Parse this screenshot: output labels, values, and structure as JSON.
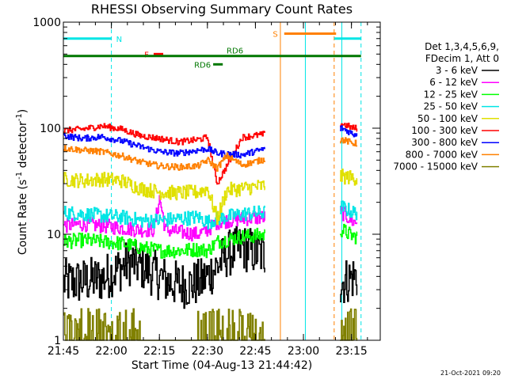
{
  "chart_data": {
    "type": "line",
    "title": "RHESSI Observing Summary Count Rates",
    "xlabel": "Start Time (04-Aug-13 21:44:42)",
    "ylabel": "Count Rate (s-1 detector-1)",
    "yscale": "log",
    "ylim": [
      1,
      1000
    ],
    "xlim_minutes": [
      21.75,
      23.4
    ],
    "x_ticks": [
      {
        "value": 21.75,
        "label": "21:45"
      },
      {
        "value": 22.0,
        "label": "22:00"
      },
      {
        "value": 22.25,
        "label": "22:15"
      },
      {
        "value": 22.5,
        "label": "22:30"
      },
      {
        "value": 22.75,
        "label": "22:45"
      },
      {
        "value": 23.0,
        "label": "23:00"
      },
      {
        "value": 23.25,
        "label": "23:15"
      }
    ],
    "y_ticks": [
      {
        "value": 1,
        "label": "1"
      },
      {
        "value": 10,
        "label": "10"
      },
      {
        "value": 100,
        "label": "100"
      },
      {
        "value": 1000,
        "label": "1000"
      }
    ],
    "legend_header": [
      "Det 1,3,4,5,6,9,",
      "FDecim 1, Att 0"
    ],
    "series": [
      {
        "name": "3 - 6 keV",
        "color": "#000000",
        "x": [
          21.75,
          21.85,
          21.95,
          22.02,
          22.1,
          22.2,
          22.3,
          22.4,
          22.47,
          22.55,
          22.6,
          22.68,
          23.2,
          23.26
        ],
        "values": [
          3.5,
          3.6,
          3.8,
          4.5,
          5.5,
          4.5,
          3.5,
          3.3,
          3.6,
          5.0,
          6.5,
          7.5,
          3.5,
          4.0
        ]
      },
      {
        "name": "6 - 12 keV",
        "color": "#ff00ff",
        "x": [
          21.75,
          21.85,
          21.95,
          22.05,
          22.15,
          22.22,
          22.25,
          22.28,
          22.35,
          22.45,
          22.5,
          22.55,
          22.68,
          23.2,
          23.26
        ],
        "values": [
          12.0,
          12.5,
          12.0,
          11.5,
          11.0,
          11.0,
          22.0,
          11.0,
          10.5,
          10.0,
          11.0,
          13.0,
          14.0,
          16.0,
          13.0
        ]
      },
      {
        "name": "12 - 25 keV",
        "color": "#00ff00",
        "x": [
          21.75,
          21.85,
          21.95,
          22.05,
          22.15,
          22.25,
          22.35,
          22.45,
          22.5,
          22.55,
          22.68,
          23.2,
          23.26
        ],
        "values": [
          8.5,
          8.8,
          8.5,
          8.2,
          7.5,
          7.0,
          7.0,
          7.2,
          7.0,
          8.5,
          9.5,
          11.0,
          9.5
        ]
      },
      {
        "name": "25 - 50 keV",
        "color": "#00e5e5",
        "x": [
          21.75,
          21.85,
          21.95,
          22.05,
          22.15,
          22.25,
          22.35,
          22.45,
          22.5,
          22.55,
          22.68,
          23.2,
          23.26
        ],
        "values": [
          16.0,
          15.5,
          15.0,
          14.5,
          13.5,
          13.5,
          14.0,
          14.5,
          13.0,
          14.0,
          15.5,
          18.0,
          16.0
        ]
      },
      {
        "name": "50 - 100 keV",
        "color": "#e0e000",
        "x": [
          21.75,
          21.85,
          21.95,
          22.05,
          22.15,
          22.25,
          22.35,
          22.45,
          22.5,
          22.55,
          22.6,
          22.68,
          23.2,
          23.26
        ],
        "values": [
          33.0,
          32.0,
          33.0,
          32.0,
          27.0,
          25.0,
          24.5,
          25.0,
          27.0,
          14.0,
          26.0,
          27.0,
          35.0,
          34.0
        ]
      },
      {
        "name": "100 - 300 keV",
        "color": "#ff0000",
        "x": [
          21.75,
          21.85,
          21.95,
          22.05,
          22.15,
          22.25,
          22.35,
          22.45,
          22.5,
          22.55,
          22.68,
          23.2,
          23.26
        ],
        "values": [
          95.0,
          98.0,
          105.0,
          98.0,
          85.0,
          80.0,
          74.0,
          78.0,
          82.0,
          30.0,
          82.0,
          110.0,
          100.0
        ]
      },
      {
        "name": "300 - 800 keV",
        "color": "#0000ff",
        "x": [
          21.75,
          21.85,
          21.95,
          22.05,
          22.15,
          22.25,
          22.35,
          22.45,
          22.5,
          22.55,
          22.68,
          23.2,
          23.26
        ],
        "values": [
          85.0,
          80.0,
          83.0,
          76.0,
          67.0,
          60.0,
          58.0,
          62.0,
          64.0,
          58.0,
          56.0,
          100.0,
          88.0
        ]
      },
      {
        "name": "800 - 7000 keV",
        "color": "#ff8000",
        "x": [
          21.75,
          21.85,
          21.95,
          22.05,
          22.15,
          22.25,
          22.35,
          22.45,
          22.5,
          22.55,
          22.6,
          22.68,
          23.2,
          23.26
        ],
        "values": [
          65.0,
          62.0,
          60.0,
          55.0,
          48.0,
          44.0,
          43.0,
          44.0,
          50.0,
          42.0,
          55.0,
          45.0,
          78.0,
          72.0
        ]
      },
      {
        "name": "7000 - 15000 keV",
        "color": "#808000",
        "x": [
          21.75,
          21.8,
          21.88,
          21.95,
          22.05,
          22.1,
          22.18,
          22.25,
          22.35,
          22.45,
          22.5,
          22.6,
          22.7,
          22.8,
          23.2,
          23.26
        ],
        "values": [
          1.0,
          1.0,
          2.0,
          1.6,
          1.8,
          2.0,
          1.0,
          1.0,
          1.0,
          1.0,
          2.0,
          1.8,
          2.0,
          1.0,
          1.0,
          1.0
        ]
      }
    ],
    "flags": [
      {
        "label": "N",
        "color": "#00e5e5",
        "y": 700,
        "segments": [
          [
            21.75,
            22.0
          ],
          [
            23.16,
            23.3
          ]
        ]
      },
      {
        "label": "S",
        "color": "#ff8000",
        "y": 780,
        "segments": [
          [
            22.9,
            23.17
          ]
        ]
      },
      {
        "label": "F",
        "color": "#ff0000",
        "y": 500,
        "segments": [
          [
            22.22,
            22.27
          ]
        ]
      },
      {
        "label": "RD6",
        "color": "#007700",
        "y": 480,
        "segments": [
          [
            21.75,
            23.3
          ]
        ]
      },
      {
        "label": "RD6",
        "color": "#007700",
        "y": 400,
        "segments": [
          [
            22.53,
            22.58
          ]
        ]
      }
    ],
    "vertical_markers": [
      {
        "x": 21.75,
        "color": "#00e5e5",
        "style": "solid"
      },
      {
        "x": 22.0,
        "color": "#00e5e5",
        "style": "dashed"
      },
      {
        "x": 22.88,
        "color": "#ff8000",
        "style": "solid"
      },
      {
        "x": 23.01,
        "color": "#00e5e5",
        "style": "solid"
      },
      {
        "x": 23.16,
        "color": "#ff8000",
        "style": "dashed"
      },
      {
        "x": 23.2,
        "color": "#00e5e5",
        "style": "solid"
      },
      {
        "x": 23.3,
        "color": "#00e5e5",
        "style": "dashed"
      }
    ]
  },
  "footer": {
    "date_stamp": "21-Oct-2021 09:20"
  }
}
